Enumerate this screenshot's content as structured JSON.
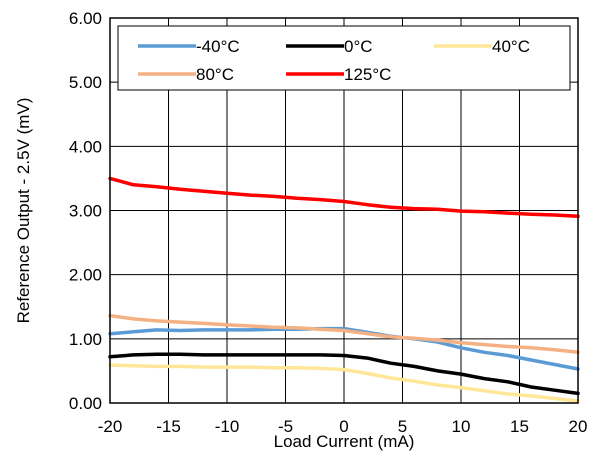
{
  "chart_data": {
    "type": "line",
    "title": "",
    "xlabel": "Load Current (mA)",
    "ylabel": "Reference Output - 2.5V (mV)",
    "xlim": [
      -20,
      20
    ],
    "ylim": [
      0,
      6
    ],
    "xticks": [
      -20,
      -15,
      -10,
      -5,
      0,
      5,
      10,
      15,
      20
    ],
    "yticks": [
      0,
      1,
      2,
      3,
      4,
      5,
      6
    ],
    "xtick_labels": [
      "-20",
      "-15",
      "-10",
      "-5",
      "0",
      "5",
      "10",
      "15",
      "20"
    ],
    "ytick_labels": [
      "0.00",
      "1.00",
      "2.00",
      "3.00",
      "4.00",
      "5.00",
      "6.00"
    ],
    "grid": true,
    "legend_position": "top",
    "series": [
      {
        "name": "-40°C",
        "color": "#5b9bd5",
        "x": [
          -20,
          -18,
          -16,
          -14,
          -12,
          -10,
          -8,
          -6,
          -4,
          -2,
          0,
          2,
          4,
          6,
          8,
          10,
          12,
          14,
          16,
          18,
          20
        ],
        "y": [
          1.08,
          1.11,
          1.14,
          1.13,
          1.14,
          1.14,
          1.14,
          1.15,
          1.15,
          1.16,
          1.16,
          1.1,
          1.04,
          1.0,
          0.95,
          0.86,
          0.79,
          0.74,
          0.67,
          0.6,
          0.53
        ]
      },
      {
        "name": "0°C",
        "color": "#000000",
        "x": [
          -20,
          -18,
          -16,
          -14,
          -12,
          -10,
          -8,
          -6,
          -4,
          -2,
          0,
          2,
          4,
          6,
          8,
          10,
          12,
          14,
          16,
          18,
          20
        ],
        "y": [
          0.72,
          0.75,
          0.76,
          0.76,
          0.75,
          0.75,
          0.75,
          0.75,
          0.75,
          0.75,
          0.74,
          0.7,
          0.62,
          0.57,
          0.5,
          0.45,
          0.38,
          0.33,
          0.25,
          0.2,
          0.15
        ]
      },
      {
        "name": "40°C",
        "color": "#ffe699",
        "x": [
          -20,
          -18,
          -16,
          -14,
          -12,
          -10,
          -8,
          -6,
          -4,
          -2,
          0,
          2,
          4,
          6,
          8,
          10,
          12,
          14,
          16,
          18,
          20
        ],
        "y": [
          0.59,
          0.58,
          0.57,
          0.57,
          0.56,
          0.56,
          0.56,
          0.55,
          0.55,
          0.54,
          0.52,
          0.46,
          0.39,
          0.34,
          0.28,
          0.24,
          0.19,
          0.14,
          0.11,
          0.07,
          0.03
        ]
      },
      {
        "name": "80°C",
        "color": "#f4b183",
        "x": [
          -20,
          -18,
          -16,
          -14,
          -12,
          -10,
          -8,
          -6,
          -4,
          -2,
          0,
          2,
          4,
          6,
          8,
          10,
          12,
          14,
          16,
          18,
          20
        ],
        "y": [
          1.36,
          1.31,
          1.28,
          1.26,
          1.24,
          1.22,
          1.2,
          1.18,
          1.17,
          1.15,
          1.13,
          1.08,
          1.03,
          1.01,
          0.98,
          0.94,
          0.91,
          0.88,
          0.86,
          0.83,
          0.79
        ]
      },
      {
        "name": "125°C",
        "color": "#ff0000",
        "x": [
          -20,
          -18,
          -16,
          -14,
          -12,
          -10,
          -8,
          -6,
          -4,
          -2,
          0,
          2,
          4,
          6,
          8,
          10,
          12,
          14,
          16,
          18,
          20
        ],
        "y": [
          3.5,
          3.4,
          3.37,
          3.33,
          3.3,
          3.27,
          3.24,
          3.22,
          3.19,
          3.17,
          3.14,
          3.09,
          3.05,
          3.03,
          3.02,
          2.99,
          2.98,
          2.96,
          2.94,
          2.93,
          2.91
        ]
      }
    ]
  }
}
